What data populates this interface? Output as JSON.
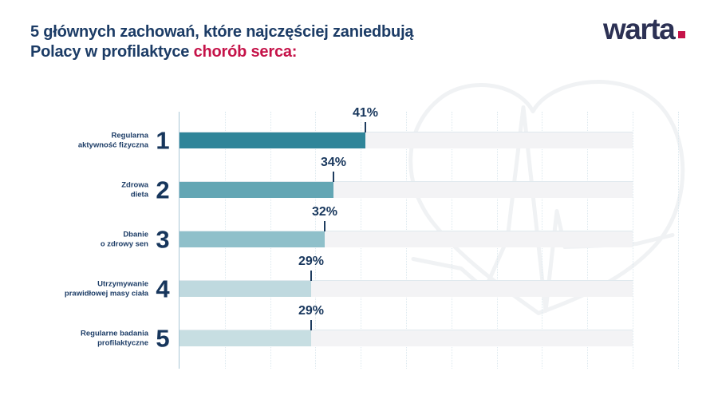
{
  "title": {
    "line1": "5 głównych zachowań, które najczęściej zaniedbują",
    "line2_prefix": "Polacy w profilaktyce ",
    "line2_highlight": "chorób serca:"
  },
  "logo": {
    "text": "warta"
  },
  "colors": {
    "navy_text": "#1c3c66",
    "accent_red": "#c51349",
    "logo_navy": "#2c3154",
    "axis": "#a9c7d5",
    "gridline": "#dde9ef",
    "track": "#f3f3f5",
    "tick": "#1e3c5f",
    "watermark": "#f0f2f4"
  },
  "chart_data": {
    "type": "bar",
    "orientation": "horizontal",
    "title": "5 głównych zachowań, które najczęściej zaniedbują Polacy w profilaktyce chorób serca:",
    "categories": [
      "Regularna aktywność fizyczna",
      "Zdrowa dieta",
      "Dbanie o zdrowy sen",
      "Utrzymywanie prawidłowej masy ciała",
      "Regularne badania profilaktyczne"
    ],
    "ranks": [
      "1",
      "2",
      "3",
      "4",
      "5"
    ],
    "values": [
      41,
      34,
      32,
      29,
      29
    ],
    "unit": "%",
    "xlim": [
      0,
      100
    ],
    "gridlines": "dotted vertical lines every 10%, no tick labels",
    "legend": "none",
    "bar_colors": [
      "#2f8599",
      "#63a6b4",
      "#8fc0ca",
      "#bfd9df",
      "#c7dee2"
    ]
  },
  "rows": [
    {
      "label_line1": "Regularna",
      "label_line2": "aktywność fizyczna",
      "rank": "1",
      "value_label": "41%"
    },
    {
      "label_line1": "Zdrowa",
      "label_line2": "dieta",
      "rank": "2",
      "value_label": "34%"
    },
    {
      "label_line1": "Dbanie",
      "label_line2": "o zdrowy sen",
      "rank": "3",
      "value_label": "32%"
    },
    {
      "label_line1": "Utrzymywanie",
      "label_line2": "prawidłowej masy ciała",
      "rank": "4",
      "value_label": "29%"
    },
    {
      "label_line1": "Regularne badania",
      "label_line2": "profilaktyczne",
      "rank": "5",
      "value_label": "29%"
    }
  ]
}
